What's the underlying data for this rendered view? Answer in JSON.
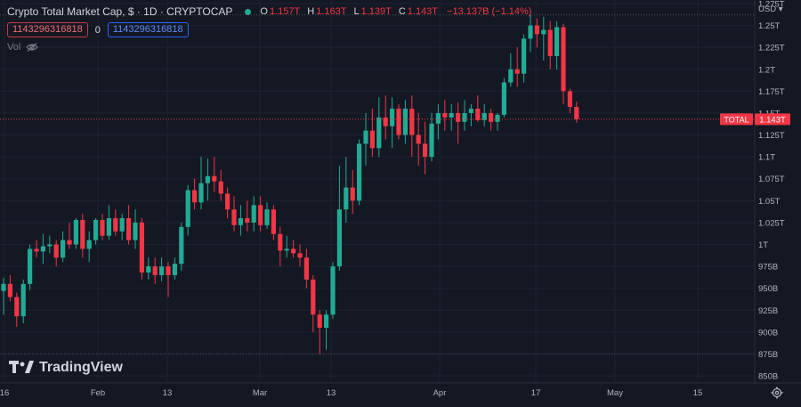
{
  "header": {
    "title": "Crypto Total Market Cap, $ · 1D · CRYPTOCAP",
    "o": "1.157T",
    "h": "1.163T",
    "l": "1.139T",
    "c": "1.143T",
    "change": "−13.137B (−1.14%)",
    "o_label": "O",
    "h_label": "H",
    "l_label": "L",
    "c_label": "C"
  },
  "toolbar": {
    "sell_value": "1143296316818",
    "spread": "0",
    "buy_value": "1143296316818"
  },
  "volume_label": "Vol",
  "brand": "TradingView",
  "colors": {
    "up": "#22ab94",
    "down": "#f23645",
    "bg": "#141823",
    "grid": "#1e2230",
    "text": "#b2b5be"
  },
  "icons": {
    "indicator": "indicator-dot-icon",
    "eye": "eye-hidden-icon",
    "settings": "gear-icon"
  },
  "chart_data": {
    "type": "candlestick",
    "currency": "USD",
    "last_value_label": "TOTAL",
    "last_value": "1.143T",
    "ylim": [
      845,
      1275
    ],
    "yticks": [
      {
        "v": 1275,
        "label": "1.275T"
      },
      {
        "v": 1250,
        "label": "1.25T"
      },
      {
        "v": 1225,
        "label": "1.225T"
      },
      {
        "v": 1200,
        "label": "1.2T"
      },
      {
        "v": 1175,
        "label": "1.175T"
      },
      {
        "v": 1150,
        "label": "1.15T"
      },
      {
        "v": 1125,
        "label": "1.125T"
      },
      {
        "v": 1100,
        "label": "1.1T"
      },
      {
        "v": 1075,
        "label": "1.075T"
      },
      {
        "v": 1050,
        "label": "1.05T"
      },
      {
        "v": 1025,
        "label": "1.025T"
      },
      {
        "v": 1000,
        "label": "1T"
      },
      {
        "v": 975,
        "label": "975B"
      },
      {
        "v": 950,
        "label": "950B"
      },
      {
        "v": 925,
        "label": "925B"
      },
      {
        "v": 900,
        "label": "900B"
      },
      {
        "v": 875,
        "label": "875B"
      },
      {
        "v": 850,
        "label": "850B"
      }
    ],
    "xticks": [
      "16",
      "Feb",
      "13",
      "Mar",
      "13",
      "Apr",
      "17",
      "May",
      "15"
    ],
    "candles": [
      {
        "o": 947,
        "h": 962,
        "l": 920,
        "c": 955
      },
      {
        "o": 955,
        "h": 965,
        "l": 935,
        "c": 940
      },
      {
        "o": 940,
        "h": 945,
        "l": 906,
        "c": 918
      },
      {
        "o": 918,
        "h": 960,
        "l": 910,
        "c": 955
      },
      {
        "o": 955,
        "h": 1000,
        "l": 948,
        "c": 995
      },
      {
        "o": 995,
        "h": 1005,
        "l": 985,
        "c": 992
      },
      {
        "o": 992,
        "h": 1012,
        "l": 978,
        "c": 998
      },
      {
        "o": 998,
        "h": 1010,
        "l": 990,
        "c": 1000
      },
      {
        "o": 1000,
        "h": 1005,
        "l": 975,
        "c": 985
      },
      {
        "o": 985,
        "h": 1015,
        "l": 980,
        "c": 1005
      },
      {
        "o": 1005,
        "h": 1025,
        "l": 995,
        "c": 1000
      },
      {
        "o": 1000,
        "h": 1030,
        "l": 995,
        "c": 1028
      },
      {
        "o": 1028,
        "h": 1035,
        "l": 985,
        "c": 995
      },
      {
        "o": 995,
        "h": 1015,
        "l": 980,
        "c": 1005
      },
      {
        "o": 1005,
        "h": 1030,
        "l": 1000,
        "c": 1028
      },
      {
        "o": 1028,
        "h": 1035,
        "l": 1005,
        "c": 1010
      },
      {
        "o": 1010,
        "h": 1045,
        "l": 1005,
        "c": 1030
      },
      {
        "o": 1030,
        "h": 1040,
        "l": 1010,
        "c": 1015
      },
      {
        "o": 1015,
        "h": 1035,
        "l": 1005,
        "c": 1030
      },
      {
        "o": 1030,
        "h": 1045,
        "l": 1000,
        "c": 1005
      },
      {
        "o": 1005,
        "h": 1040,
        "l": 995,
        "c": 1025
      },
      {
        "o": 1025,
        "h": 1030,
        "l": 960,
        "c": 968
      },
      {
        "o": 968,
        "h": 985,
        "l": 960,
        "c": 975
      },
      {
        "o": 975,
        "h": 985,
        "l": 955,
        "c": 965
      },
      {
        "o": 965,
        "h": 985,
        "l": 958,
        "c": 975
      },
      {
        "o": 975,
        "h": 980,
        "l": 940,
        "c": 965
      },
      {
        "o": 965,
        "h": 985,
        "l": 960,
        "c": 978
      },
      {
        "o": 978,
        "h": 1025,
        "l": 970,
        "c": 1020
      },
      {
        "o": 1020,
        "h": 1068,
        "l": 1010,
        "c": 1062
      },
      {
        "o": 1062,
        "h": 1075,
        "l": 1040,
        "c": 1048
      },
      {
        "o": 1048,
        "h": 1100,
        "l": 1040,
        "c": 1070
      },
      {
        "o": 1070,
        "h": 1098,
        "l": 1050,
        "c": 1078
      },
      {
        "o": 1078,
        "h": 1100,
        "l": 1060,
        "c": 1072
      },
      {
        "o": 1072,
        "h": 1085,
        "l": 1050,
        "c": 1058
      },
      {
        "o": 1058,
        "h": 1065,
        "l": 1030,
        "c": 1040
      },
      {
        "o": 1040,
        "h": 1055,
        "l": 1015,
        "c": 1022
      },
      {
        "o": 1022,
        "h": 1045,
        "l": 1010,
        "c": 1030
      },
      {
        "o": 1030,
        "h": 1050,
        "l": 1015,
        "c": 1025
      },
      {
        "o": 1025,
        "h": 1055,
        "l": 1015,
        "c": 1045
      },
      {
        "o": 1045,
        "h": 1055,
        "l": 1015,
        "c": 1022
      },
      {
        "o": 1022,
        "h": 1048,
        "l": 1018,
        "c": 1040
      },
      {
        "o": 1040,
        "h": 1045,
        "l": 1005,
        "c": 1012
      },
      {
        "o": 1012,
        "h": 1020,
        "l": 975,
        "c": 993
      },
      {
        "o": 993,
        "h": 1010,
        "l": 985,
        "c": 995
      },
      {
        "o": 995,
        "h": 1005,
        "l": 985,
        "c": 990
      },
      {
        "o": 990,
        "h": 1000,
        "l": 975,
        "c": 985
      },
      {
        "o": 985,
        "h": 995,
        "l": 950,
        "c": 960
      },
      {
        "o": 960,
        "h": 965,
        "l": 900,
        "c": 920
      },
      {
        "o": 920,
        "h": 925,
        "l": 875,
        "c": 905
      },
      {
        "o": 905,
        "h": 925,
        "l": 880,
        "c": 920
      },
      {
        "o": 920,
        "h": 980,
        "l": 915,
        "c": 975
      },
      {
        "o": 975,
        "h": 1090,
        "l": 970,
        "c": 1040
      },
      {
        "o": 1040,
        "h": 1100,
        "l": 1025,
        "c": 1065
      },
      {
        "o": 1065,
        "h": 1085,
        "l": 1035,
        "c": 1050
      },
      {
        "o": 1050,
        "h": 1120,
        "l": 1045,
        "c": 1115
      },
      {
        "o": 1115,
        "h": 1150,
        "l": 1090,
        "c": 1130
      },
      {
        "o": 1130,
        "h": 1155,
        "l": 1100,
        "c": 1110
      },
      {
        "o": 1110,
        "h": 1168,
        "l": 1100,
        "c": 1145
      },
      {
        "o": 1145,
        "h": 1170,
        "l": 1120,
        "c": 1135
      },
      {
        "o": 1135,
        "h": 1168,
        "l": 1110,
        "c": 1155
      },
      {
        "o": 1155,
        "h": 1160,
        "l": 1120,
        "c": 1125
      },
      {
        "o": 1125,
        "h": 1165,
        "l": 1115,
        "c": 1155
      },
      {
        "o": 1155,
        "h": 1170,
        "l": 1100,
        "c": 1125
      },
      {
        "o": 1125,
        "h": 1150,
        "l": 1090,
        "c": 1115
      },
      {
        "o": 1115,
        "h": 1140,
        "l": 1080,
        "c": 1100
      },
      {
        "o": 1100,
        "h": 1150,
        "l": 1095,
        "c": 1138
      },
      {
        "o": 1138,
        "h": 1160,
        "l": 1120,
        "c": 1150
      },
      {
        "o": 1150,
        "h": 1165,
        "l": 1130,
        "c": 1145
      },
      {
        "o": 1145,
        "h": 1160,
        "l": 1130,
        "c": 1150
      },
      {
        "o": 1150,
        "h": 1162,
        "l": 1115,
        "c": 1140
      },
      {
        "o": 1140,
        "h": 1165,
        "l": 1130,
        "c": 1150
      },
      {
        "o": 1150,
        "h": 1160,
        "l": 1135,
        "c": 1155
      },
      {
        "o": 1155,
        "h": 1170,
        "l": 1140,
        "c": 1142
      },
      {
        "o": 1142,
        "h": 1160,
        "l": 1135,
        "c": 1150
      },
      {
        "o": 1150,
        "h": 1155,
        "l": 1130,
        "c": 1140
      },
      {
        "o": 1140,
        "h": 1150,
        "l": 1130,
        "c": 1148
      },
      {
        "o": 1148,
        "h": 1190,
        "l": 1145,
        "c": 1185
      },
      {
        "o": 1185,
        "h": 1218,
        "l": 1180,
        "c": 1200
      },
      {
        "o": 1200,
        "h": 1225,
        "l": 1180,
        "c": 1195
      },
      {
        "o": 1195,
        "h": 1240,
        "l": 1185,
        "c": 1235
      },
      {
        "o": 1235,
        "h": 1262,
        "l": 1220,
        "c": 1250
      },
      {
        "o": 1250,
        "h": 1258,
        "l": 1225,
        "c": 1240
      },
      {
        "o": 1240,
        "h": 1260,
        "l": 1210,
        "c": 1245
      },
      {
        "o": 1245,
        "h": 1255,
        "l": 1200,
        "c": 1215
      },
      {
        "o": 1215,
        "h": 1255,
        "l": 1200,
        "c": 1248
      },
      {
        "o": 1248,
        "h": 1252,
        "l": 1160,
        "c": 1175
      },
      {
        "o": 1175,
        "h": 1178,
        "l": 1150,
        "c": 1157
      },
      {
        "o": 1157,
        "h": 1163,
        "l": 1139,
        "c": 1143
      }
    ]
  }
}
